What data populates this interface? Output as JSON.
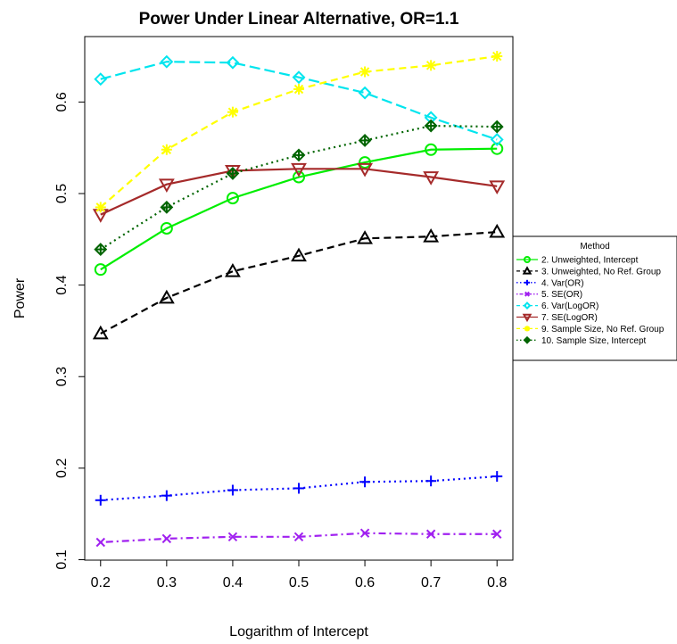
{
  "chart_data": {
    "type": "line",
    "title": "Power Under Linear Alternative, OR=1.1",
    "xlabel": "Logarithm of Intercept",
    "ylabel": "Power",
    "x": [
      0.2,
      0.3,
      0.4,
      0.5,
      0.6,
      0.7,
      0.8
    ],
    "x_ticks": [
      "0.2",
      "0.3",
      "0.4",
      "0.5",
      "0.6",
      "0.7",
      "0.8"
    ],
    "y_ticks": [
      "0.1",
      "0.2",
      "0.3",
      "0.4",
      "0.5",
      "0.6"
    ],
    "y_tick_values": [
      0.1,
      0.2,
      0.3,
      0.4,
      0.5,
      0.6
    ],
    "xlim": [
      0.176,
      0.824
    ],
    "ylim": [
      0.0995,
      0.6715
    ],
    "grid": false,
    "legend": {
      "title": "Method",
      "position": "right"
    },
    "series": [
      {
        "name": "2. Unweighted, Intercept",
        "color": "#00ee00",
        "line": "solid",
        "marker": "circle",
        "values": [
          0.417,
          0.462,
          0.495,
          0.518,
          0.534,
          0.548,
          0.549
        ]
      },
      {
        "name": "3. Unweighted, No Ref. Group",
        "color": "#000000",
        "line": "dashed",
        "marker": "triangle",
        "values": [
          0.347,
          0.386,
          0.415,
          0.432,
          0.451,
          0.453,
          0.458
        ]
      },
      {
        "name": "4. Var(OR)",
        "color": "#0000ff",
        "line": "dotted",
        "marker": "plus",
        "values": [
          0.165,
          0.17,
          0.176,
          0.178,
          0.185,
          0.186,
          0.191
        ]
      },
      {
        "name": "5. SE(OR)",
        "color": "#a020f0",
        "line": "dotdash",
        "marker": "cross",
        "values": [
          0.119,
          0.123,
          0.125,
          0.125,
          0.129,
          0.128,
          0.128
        ]
      },
      {
        "name": "6. Var(LogOR)",
        "color": "#00e5ee",
        "line": "longdash",
        "marker": "diamond",
        "values": [
          0.625,
          0.644,
          0.643,
          0.627,
          0.61,
          0.583,
          0.559
        ]
      },
      {
        "name": "7. SE(LogOR)",
        "color": "#a52a2a",
        "line": "solid",
        "marker": "triangle-down",
        "values": [
          0.477,
          0.51,
          0.525,
          0.527,
          0.527,
          0.518,
          0.508
        ]
      },
      {
        "name": "9. Sample Size, No Ref. Group",
        "color": "#ffff00",
        "line": "dashed",
        "marker": "asterisk",
        "values": [
          0.485,
          0.548,
          0.589,
          0.614,
          0.633,
          0.64,
          0.65
        ]
      },
      {
        "name": "10. Sample Size, Intercept",
        "color": "#006400",
        "line": "dotted",
        "marker": "circle-plus",
        "values": [
          0.439,
          0.485,
          0.522,
          0.542,
          0.558,
          0.574,
          0.573
        ]
      }
    ]
  }
}
